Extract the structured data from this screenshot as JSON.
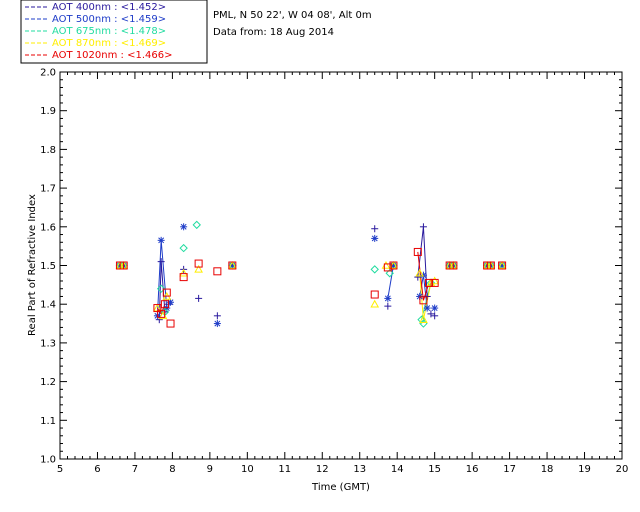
{
  "header": {
    "site_line": "PML, N 50 22', W 04 08', Alt 0m",
    "date_line": "Data from: 18 Aug 2014"
  },
  "chart_data": {
    "type": "scatter",
    "title": "",
    "xlabel": "Time (GMT)",
    "ylabel": "Real Part of Refractive Index",
    "xlim": [
      5,
      20
    ],
    "ylim": [
      1.0,
      2.0
    ],
    "xticks": [
      "5",
      "6",
      "7",
      "8",
      "9",
      "10",
      "11",
      "12",
      "13",
      "14",
      "15",
      "16",
      "17",
      "18",
      "19",
      "20"
    ],
    "yticks": [
      "1.0",
      "1.1",
      "1.2",
      "1.3",
      "1.4",
      "1.5",
      "1.6",
      "1.7",
      "1.8",
      "1.9",
      "2.0"
    ],
    "legend_position": "top-left",
    "series": [
      {
        "name": "AOT 400nm",
        "legend_label": "AOT  400nm : <1.452>",
        "color": "#2a1a9e",
        "marker": "plus",
        "points": [
          [
            6.6,
            1.5
          ],
          [
            6.7,
            1.5
          ],
          [
            7.65,
            1.36
          ],
          [
            7.7,
            1.51
          ],
          [
            7.8,
            1.38
          ],
          [
            7.9,
            1.4
          ],
          [
            8.3,
            1.49
          ],
          [
            8.7,
            1.415
          ],
          [
            9.2,
            1.37
          ],
          [
            9.6,
            1.5
          ],
          [
            13.4,
            1.595
          ],
          [
            13.75,
            1.395
          ],
          [
            13.9,
            1.5
          ],
          [
            14.55,
            1.47
          ],
          [
            14.7,
            1.6
          ],
          [
            14.8,
            1.42
          ],
          [
            14.9,
            1.375
          ],
          [
            15.0,
            1.37
          ],
          [
            15.4,
            1.5
          ],
          [
            15.5,
            1.5
          ],
          [
            16.4,
            1.5
          ],
          [
            16.5,
            1.5
          ],
          [
            16.8,
            1.5
          ]
        ],
        "lines": [
          [
            [
              7.65,
              1.36
            ],
            [
              7.7,
              1.51
            ],
            [
              7.8,
              1.38
            ]
          ],
          [
            [
              14.55,
              1.47
            ],
            [
              14.7,
              1.6
            ],
            [
              14.8,
              1.42
            ]
          ]
        ]
      },
      {
        "name": "AOT 500nm",
        "legend_label": "AOT  500nm : <1.459>",
        "color": "#1e3cc8",
        "marker": "asterisk",
        "points": [
          [
            6.6,
            1.5
          ],
          [
            6.7,
            1.5
          ],
          [
            7.6,
            1.37
          ],
          [
            7.7,
            1.565
          ],
          [
            7.85,
            1.39
          ],
          [
            7.95,
            1.405
          ],
          [
            8.3,
            1.6
          ],
          [
            9.2,
            1.35
          ],
          [
            9.6,
            1.5
          ],
          [
            13.4,
            1.57
          ],
          [
            13.75,
            1.415
          ],
          [
            13.9,
            1.5
          ],
          [
            14.6,
            1.42
          ],
          [
            14.7,
            1.475
          ],
          [
            14.8,
            1.39
          ],
          [
            15.0,
            1.39
          ],
          [
            15.4,
            1.5
          ],
          [
            15.5,
            1.5
          ],
          [
            16.4,
            1.5
          ],
          [
            16.5,
            1.5
          ],
          [
            16.8,
            1.5
          ]
        ],
        "lines": [
          [
            [
              7.6,
              1.37
            ],
            [
              7.7,
              1.565
            ],
            [
              7.85,
              1.39
            ]
          ],
          [
            [
              13.75,
              1.415
            ],
            [
              13.9,
              1.5
            ]
          ],
          [
            [
              14.6,
              1.42
            ],
            [
              14.7,
              1.475
            ],
            [
              14.8,
              1.39
            ]
          ]
        ]
      },
      {
        "name": "AOT 675nm",
        "legend_label": "AOT  675nm : <1.478>",
        "color": "#22dca0",
        "marker": "diamond",
        "points": [
          [
            6.6,
            1.5
          ],
          [
            6.7,
            1.5
          ],
          [
            7.7,
            1.44
          ],
          [
            7.8,
            1.38
          ],
          [
            8.3,
            1.545
          ],
          [
            8.65,
            1.605
          ],
          [
            9.6,
            1.5
          ],
          [
            13.4,
            1.49
          ],
          [
            13.8,
            1.48
          ],
          [
            13.9,
            1.5
          ],
          [
            14.65,
            1.36
          ],
          [
            14.7,
            1.35
          ],
          [
            14.9,
            1.455
          ],
          [
            15.4,
            1.5
          ],
          [
            15.5,
            1.5
          ],
          [
            16.4,
            1.5
          ],
          [
            16.5,
            1.5
          ],
          [
            16.8,
            1.5
          ]
        ],
        "lines": [
          [
            [
              14.65,
              1.36
            ],
            [
              14.9,
              1.455
            ]
          ]
        ]
      },
      {
        "name": "AOT 870nm",
        "legend_label": "AOT  870nm : <1.469>",
        "color": "#ffee00",
        "marker": "triangle",
        "points": [
          [
            6.6,
            1.5
          ],
          [
            6.7,
            1.5
          ],
          [
            7.6,
            1.39
          ],
          [
            7.75,
            1.37
          ],
          [
            7.85,
            1.42
          ],
          [
            8.3,
            1.48
          ],
          [
            8.7,
            1.49
          ],
          [
            9.6,
            1.5
          ],
          [
            13.4,
            1.4
          ],
          [
            13.7,
            1.5
          ],
          [
            13.9,
            1.5
          ],
          [
            14.6,
            1.48
          ],
          [
            14.7,
            1.36
          ],
          [
            14.9,
            1.455
          ],
          [
            15.0,
            1.46
          ],
          [
            15.4,
            1.5
          ],
          [
            15.5,
            1.5
          ],
          [
            16.4,
            1.5
          ],
          [
            16.5,
            1.5
          ],
          [
            16.8,
            1.5
          ]
        ],
        "lines": [
          [
            [
              14.6,
              1.48
            ],
            [
              14.7,
              1.36
            ],
            [
              14.9,
              1.455
            ]
          ]
        ]
      },
      {
        "name": "AOT 1020nm",
        "legend_label": "AOT 1020nm : <1.466>",
        "color": "#e80000",
        "marker": "square",
        "points": [
          [
            6.6,
            1.5
          ],
          [
            6.7,
            1.5
          ],
          [
            7.6,
            1.39
          ],
          [
            7.7,
            1.375
          ],
          [
            7.8,
            1.4
          ],
          [
            7.85,
            1.43
          ],
          [
            7.95,
            1.35
          ],
          [
            8.3,
            1.47
          ],
          [
            8.7,
            1.505
          ],
          [
            9.2,
            1.485
          ],
          [
            9.6,
            1.5
          ],
          [
            13.4,
            1.425
          ],
          [
            13.75,
            1.495
          ],
          [
            13.9,
            1.5
          ],
          [
            14.55,
            1.535
          ],
          [
            14.7,
            1.41
          ],
          [
            14.85,
            1.455
          ],
          [
            15.0,
            1.455
          ],
          [
            15.4,
            1.5
          ],
          [
            15.5,
            1.5
          ],
          [
            16.4,
            1.5
          ],
          [
            16.5,
            1.5
          ],
          [
            16.8,
            1.5
          ]
        ],
        "lines": [
          [
            [
              7.6,
              1.39
            ],
            [
              7.7,
              1.375
            ],
            [
              7.8,
              1.4
            ]
          ],
          [
            [
              14.55,
              1.535
            ],
            [
              14.7,
              1.41
            ],
            [
              14.85,
              1.455
            ]
          ]
        ]
      }
    ]
  }
}
